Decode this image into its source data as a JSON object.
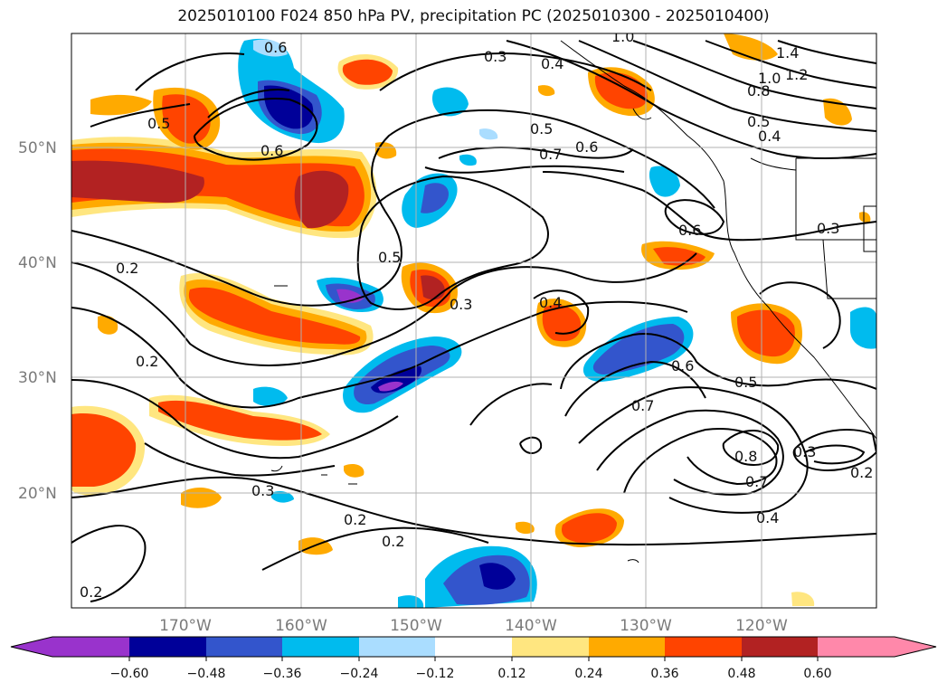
{
  "title": "2025010100 F024 850 hPa PV, precipitation PC (2025010300 - 2025010400)",
  "lat_labels": [
    "50°N",
    "40°N",
    "30°N",
    "20°N"
  ],
  "lon_labels": [
    "170°W",
    "160°W",
    "150°W",
    "140°W",
    "130°W",
    "120°W"
  ],
  "colorbar": {
    "tick_labels": [
      "−0.60",
      "−0.48",
      "−0.36",
      "−0.24",
      "−0.12",
      "0.12",
      "0.24",
      "0.36",
      "0.48",
      "0.60"
    ],
    "colors": [
      "#9933cc",
      "#000099",
      "#3355cc",
      "#00bbee",
      "#aaddff",
      "#ffffff",
      "#ffe680",
      "#ffaa00",
      "#ff4400",
      "#b22222",
      "#ff88aa"
    ]
  },
  "contour_labels": [
    "0.6",
    "0.3",
    "0.4",
    "1.0",
    "1.4",
    "1.2",
    "1.0",
    "0.8",
    "0.5",
    "0.4",
    "0.5",
    "0.6",
    "0.5",
    "0.7",
    "0.6",
    "0.6",
    "0.3",
    "0.5",
    "0.2",
    "0.3",
    "0.4",
    "0.2",
    "0.6",
    "0.7",
    "0.5",
    "0.8",
    "0.7",
    "0.3",
    "0.2",
    "0.4",
    "0.3",
    "0.2",
    "0.2",
    "0.2"
  ],
  "colors": {
    "neg_strong": "#000099",
    "neg_mid": "#3355cc",
    "neg_light": "#00bbee",
    "neg_faint": "#aaddff",
    "pos_faint": "#ffe680",
    "pos_light": "#ffaa00",
    "pos_mid": "#ff4400",
    "pos_strong": "#b22222",
    "contour": "#000000",
    "grid": "#b0b0b0"
  }
}
